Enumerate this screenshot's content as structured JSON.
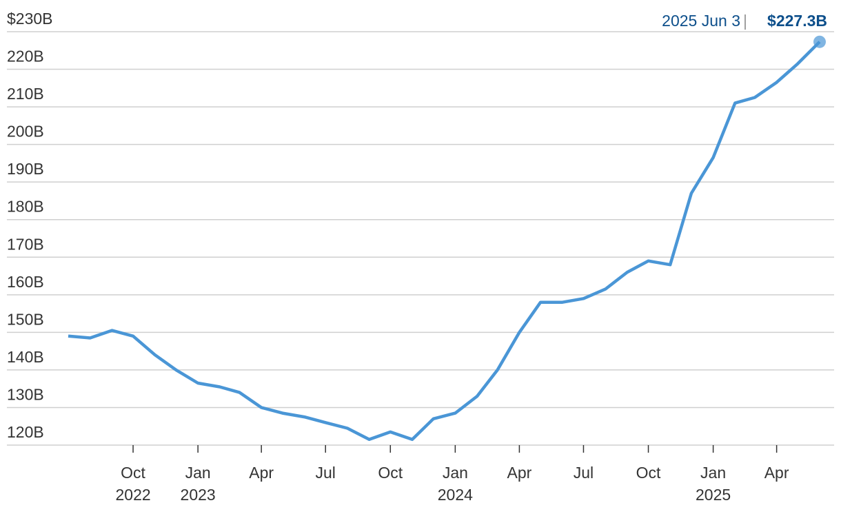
{
  "chart_data": {
    "type": "line",
    "annotation": {
      "date": "2025 Jun 3",
      "value": 227.3,
      "value_label": "$227.3B"
    },
    "x": [
      "2022-07",
      "2022-08",
      "2022-09",
      "2022-10",
      "2022-11",
      "2022-12",
      "2023-01",
      "2023-02",
      "2023-03",
      "2023-04",
      "2023-05",
      "2023-06",
      "2023-07",
      "2023-08",
      "2023-09",
      "2023-10",
      "2023-11",
      "2023-12",
      "2024-01",
      "2024-02",
      "2024-03",
      "2024-04",
      "2024-05",
      "2024-06",
      "2024-07",
      "2024-08",
      "2024-09",
      "2024-10",
      "2024-11",
      "2024-12",
      "2025-01",
      "2025-02",
      "2025-03",
      "2025-04",
      "2025-05",
      "2025-06"
    ],
    "series": [
      {
        "color": "#4a96d6",
        "values": [
          149,
          148.5,
          150.5,
          149,
          144,
          140,
          136.5,
          135.5,
          134,
          130,
          128.5,
          127.5,
          126,
          124.5,
          121.5,
          123.5,
          121.5,
          127,
          128.5,
          133,
          140,
          150,
          158,
          158,
          159,
          161.5,
          166,
          169,
          168,
          187,
          196.5,
          211,
          212.5,
          216.5,
          221.5,
          227.3
        ]
      }
    ],
    "xlim": [
      "2022-07",
      "2025-06"
    ],
    "xticks": [
      {
        "value": "2022-10",
        "label": "Oct",
        "year": "2022"
      },
      {
        "value": "2023-01",
        "label": "Jan",
        "year": "2023"
      },
      {
        "value": "2023-04",
        "label": "Apr"
      },
      {
        "value": "2023-07",
        "label": "Jul"
      },
      {
        "value": "2023-10",
        "label": "Oct"
      },
      {
        "value": "2024-01",
        "label": "Jan",
        "year": "2024"
      },
      {
        "value": "2024-04",
        "label": "Apr"
      },
      {
        "value": "2024-07",
        "label": "Jul"
      },
      {
        "value": "2024-10",
        "label": "Oct"
      },
      {
        "value": "2025-01",
        "label": "Jan",
        "year": "2025"
      },
      {
        "value": "2025-04",
        "label": "Apr"
      }
    ],
    "ylim": [
      120,
      230
    ],
    "yticks": [
      {
        "value": 230,
        "label": "$230B"
      },
      {
        "value": 220,
        "label": "220B"
      },
      {
        "value": 210,
        "label": "210B"
      },
      {
        "value": 200,
        "label": "200B"
      },
      {
        "value": 190,
        "label": "190B"
      },
      {
        "value": 180,
        "label": "180B"
      },
      {
        "value": 170,
        "label": "170B"
      },
      {
        "value": 160,
        "label": "160B"
      },
      {
        "value": 150,
        "label": "150B"
      },
      {
        "value": 140,
        "label": "140B"
      },
      {
        "value": 130,
        "label": "130B"
      },
      {
        "value": 120,
        "label": "120B"
      }
    ],
    "grid": true
  }
}
